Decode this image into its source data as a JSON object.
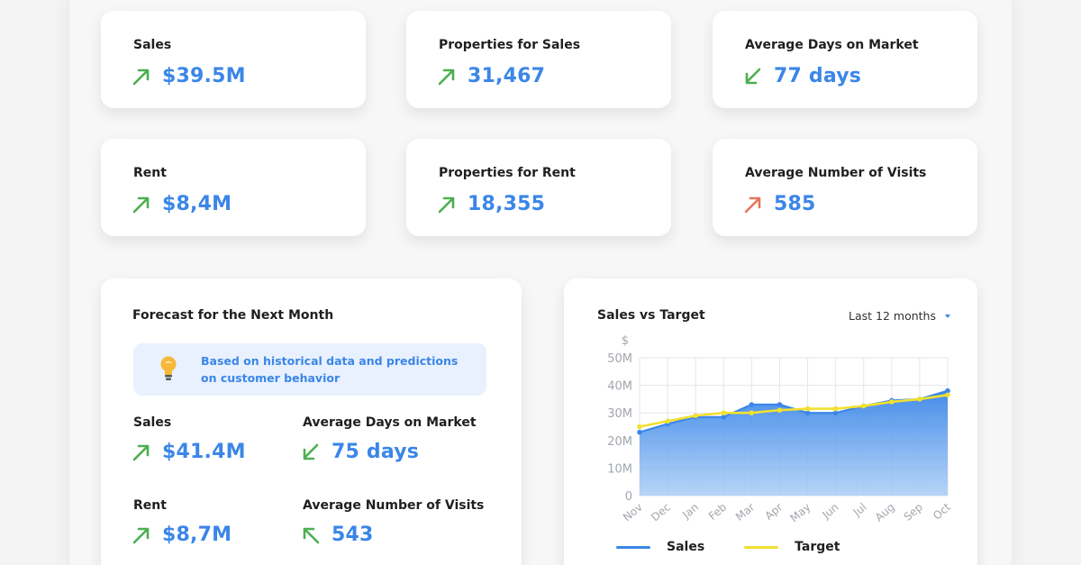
{
  "kpis": [
    {
      "label": "Sales",
      "value": "$39.5M",
      "trend": "up",
      "color": "#4caf50"
    },
    {
      "label": "Properties for Sales",
      "value": "31,467",
      "trend": "up",
      "color": "#4caf50"
    },
    {
      "label": "Average Days on Market",
      "value": "77 days",
      "trend": "down",
      "color": "#4caf50"
    },
    {
      "label": "Rent",
      "value": "$8,4M",
      "trend": "up",
      "color": "#4caf50"
    },
    {
      "label": "Properties for Rent",
      "value": "18,355",
      "trend": "up",
      "color": "#4caf50"
    },
    {
      "label": "Average Number of Visits",
      "value": "585",
      "trend": "up",
      "color": "#e8745a"
    }
  ],
  "forecast": {
    "title": "Forecast for the Next Month",
    "info": "Based on historical data and predictions on customer behavior",
    "items": [
      {
        "label": "Sales",
        "value": "$41.4M",
        "trend": "up"
      },
      {
        "label": "Average Days on Market",
        "value": "75 days",
        "trend": "down"
      },
      {
        "label": "Rent",
        "value": "$8,7M",
        "trend": "up"
      },
      {
        "label": "Average Number of Visits",
        "value": "543",
        "trend": "up-left"
      }
    ]
  },
  "sales_chart": {
    "title": "Sales vs Target",
    "range_select": "Last 12 months"
  },
  "colors": {
    "accent": "#3b86e8",
    "up": "#4caf50",
    "warn": "#e8745a",
    "target": "#f2e030"
  },
  "chart_data": {
    "type": "area",
    "title": "Sales vs Target",
    "ylabel": "$",
    "xlabel": "",
    "categories": [
      "Nov",
      "Dec",
      "Jan",
      "Feb",
      "Mar",
      "Apr",
      "May",
      "Jun",
      "Jul",
      "Aug",
      "Sep",
      "Oct"
    ],
    "ytick_labels": [
      "0",
      "10M",
      "20M",
      "30M",
      "40M",
      "50M"
    ],
    "yticks": [
      0,
      10,
      20,
      30,
      40,
      50
    ],
    "ylim": [
      0,
      50
    ],
    "grid": true,
    "legend": "bottom",
    "series": [
      {
        "name": "Sales",
        "values": [
          23,
          26,
          28.5,
          28.5,
          33,
          33,
          30,
          30,
          32.5,
          34.5,
          35,
          38
        ],
        "color": "#3b86e8"
      },
      {
        "name": "Target",
        "values": [
          25,
          27,
          29,
          30,
          30,
          31,
          31.5,
          31.5,
          32.5,
          34,
          35,
          36.5
        ],
        "color": "#f2e030"
      }
    ]
  }
}
